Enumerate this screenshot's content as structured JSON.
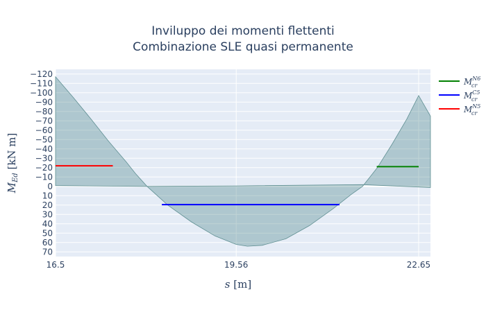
{
  "chart_data": {
    "type": "area",
    "title": "Inviluppo dei momenti flettenti",
    "subtitle": "Combinazione SLE quasi permanente",
    "xlabel": "s [m]",
    "ylabel": "M_Ed [kN m]",
    "ylabel_parts": {
      "main": "M",
      "sub": "Ed",
      "rest": " [kN m]"
    },
    "xlabel_parts": {
      "main": "s",
      "rest": " [m]"
    },
    "xlim": [
      16.5,
      22.85
    ],
    "ylim": [
      -125,
      75
    ],
    "y_reversed": true,
    "x_ticks": [
      {
        "value": 16.5,
        "label": "16.5"
      },
      {
        "value": 19.56,
        "label": "19.56"
      },
      {
        "value": 22.65,
        "label": "22.65"
      }
    ],
    "y_ticks": [
      {
        "value": -120,
        "label": "−120"
      },
      {
        "value": -110,
        "label": "−110"
      },
      {
        "value": -100,
        "label": "−100"
      },
      {
        "value": -90,
        "label": "−90"
      },
      {
        "value": -80,
        "label": "−80"
      },
      {
        "value": -70,
        "label": "−70"
      },
      {
        "value": -60,
        "label": "−60"
      },
      {
        "value": -50,
        "label": "−50"
      },
      {
        "value": -40,
        "label": "−40"
      },
      {
        "value": -30,
        "label": "−30"
      },
      {
        "value": -20,
        "label": "−20"
      },
      {
        "value": -10,
        "label": "−10"
      },
      {
        "value": 0,
        "label": "0"
      },
      {
        "value": 10,
        "label": "10"
      },
      {
        "value": 20,
        "label": "20"
      },
      {
        "value": 30,
        "label": "30"
      },
      {
        "value": 40,
        "label": "40"
      },
      {
        "value": 50,
        "label": "50"
      },
      {
        "value": 60,
        "label": "60"
      },
      {
        "value": 70,
        "label": "70"
      }
    ],
    "grid": true,
    "legend_position": "top-right",
    "envelope": {
      "fill_color": "#2f6f73",
      "fill_opacity": 0.3,
      "line_color": "#5f8f92",
      "upper": [
        {
          "x": 16.5,
          "y": -117
        },
        {
          "x": 16.8,
          "y": -95
        },
        {
          "x": 17.1,
          "y": -72
        },
        {
          "x": 17.4,
          "y": -48
        },
        {
          "x": 17.7,
          "y": -26
        },
        {
          "x": 17.85,
          "y": -14
        },
        {
          "x": 18.05,
          "y": 0
        },
        {
          "x": 18.4,
          "y": 20
        },
        {
          "x": 18.8,
          "y": 38
        },
        {
          "x": 19.2,
          "y": 53
        },
        {
          "x": 19.56,
          "y": 62
        },
        {
          "x": 19.75,
          "y": 64
        },
        {
          "x": 20.0,
          "y": 63
        },
        {
          "x": 20.4,
          "y": 56
        },
        {
          "x": 20.8,
          "y": 42
        },
        {
          "x": 21.2,
          "y": 24
        },
        {
          "x": 21.5,
          "y": 9
        },
        {
          "x": 21.7,
          "y": 0
        },
        {
          "x": 21.95,
          "y": -20
        },
        {
          "x": 22.2,
          "y": -45
        },
        {
          "x": 22.45,
          "y": -72
        },
        {
          "x": 22.65,
          "y": -97
        },
        {
          "x": 22.85,
          "y": -75
        }
      ],
      "lower": [
        {
          "x": 16.5,
          "y": -0.8
        },
        {
          "x": 18.05,
          "y": 0
        },
        {
          "x": 19.56,
          "y": -0.5
        },
        {
          "x": 21.7,
          "y": -1.8
        },
        {
          "x": 22.85,
          "y": 1.2
        }
      ]
    },
    "series": [
      {
        "name_main": "M",
        "name_sub": "cr",
        "name_sup": "N6",
        "color": "#008000",
        "x": [
          21.94,
          22.65
        ],
        "y": [
          -21,
          -21
        ]
      },
      {
        "name_main": "M",
        "name_sub": "cr",
        "name_sup": "C5",
        "color": "#0000ff",
        "x": [
          18.3,
          21.31
        ],
        "y": [
          19.5,
          19.5
        ]
      },
      {
        "name_main": "M",
        "name_sub": "cr",
        "name_sup": "N5",
        "color": "#ff0000",
        "x": [
          16.5,
          17.47
        ],
        "y": [
          -22,
          -22
        ]
      }
    ]
  }
}
